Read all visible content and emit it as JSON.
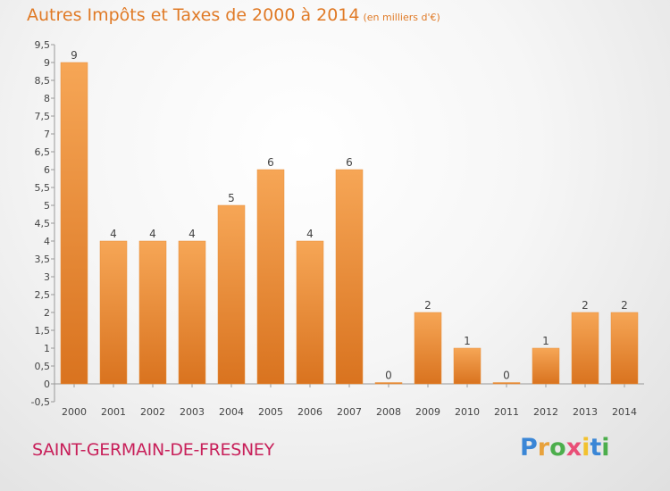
{
  "header": {
    "title": "Autres Impôts et Taxes de 2000 à 2014",
    "subtitle": "(en milliers d'€)"
  },
  "footer": {
    "commune": "SAINT-GERMAIN-DE-FRESNEY",
    "brand_letters": [
      "P",
      "r",
      "o",
      "x",
      "i",
      "t",
      "i"
    ],
    "brand_colors": [
      "#3a86d6",
      "#e8a23c",
      "#4cae4c",
      "#e94e77",
      "#f2c12e",
      "#3a86d6",
      "#4cae4c"
    ]
  },
  "colors": {
    "bar_top": "#f6a656",
    "bar_bottom": "#d9731f",
    "title": "#e07a26",
    "commune": "#c8205a"
  },
  "chart_data": {
    "type": "bar",
    "title": "Autres Impôts et Taxes de 2000 à 2014",
    "subtitle": "(en milliers d'€)",
    "categories": [
      "2000",
      "2001",
      "2002",
      "2003",
      "2004",
      "2005",
      "2006",
      "2007",
      "2008",
      "2009",
      "2010",
      "2011",
      "2012",
      "2013",
      "2014"
    ],
    "values": [
      9,
      4,
      4,
      4,
      5,
      6,
      4,
      6,
      0,
      2,
      1,
      0,
      1,
      2,
      2
    ],
    "value_labels": [
      "9",
      "4",
      "4",
      "4",
      "5",
      "6",
      "4",
      "6",
      "0",
      "2",
      "1",
      "0",
      "1",
      "2",
      "2"
    ],
    "yticks": [
      -0.5,
      0,
      0.5,
      1,
      1.5,
      2,
      2.5,
      3,
      3.5,
      4,
      4.5,
      5,
      5.5,
      6,
      6.5,
      7,
      7.5,
      8,
      8.5,
      9,
      9.5
    ],
    "ytick_labels": [
      "-0,5",
      "0",
      "0,5",
      "1",
      "1,5",
      "2",
      "2,5",
      "3",
      "3,5",
      "4",
      "4,5",
      "5",
      "5,5",
      "6",
      "6,5",
      "7",
      "7,5",
      "8",
      "8,5",
      "9",
      "9,5"
    ],
    "ylim": [
      -0.5,
      9.5
    ],
    "xlabel": "",
    "ylabel": "",
    "grid": false,
    "legend": "none"
  }
}
